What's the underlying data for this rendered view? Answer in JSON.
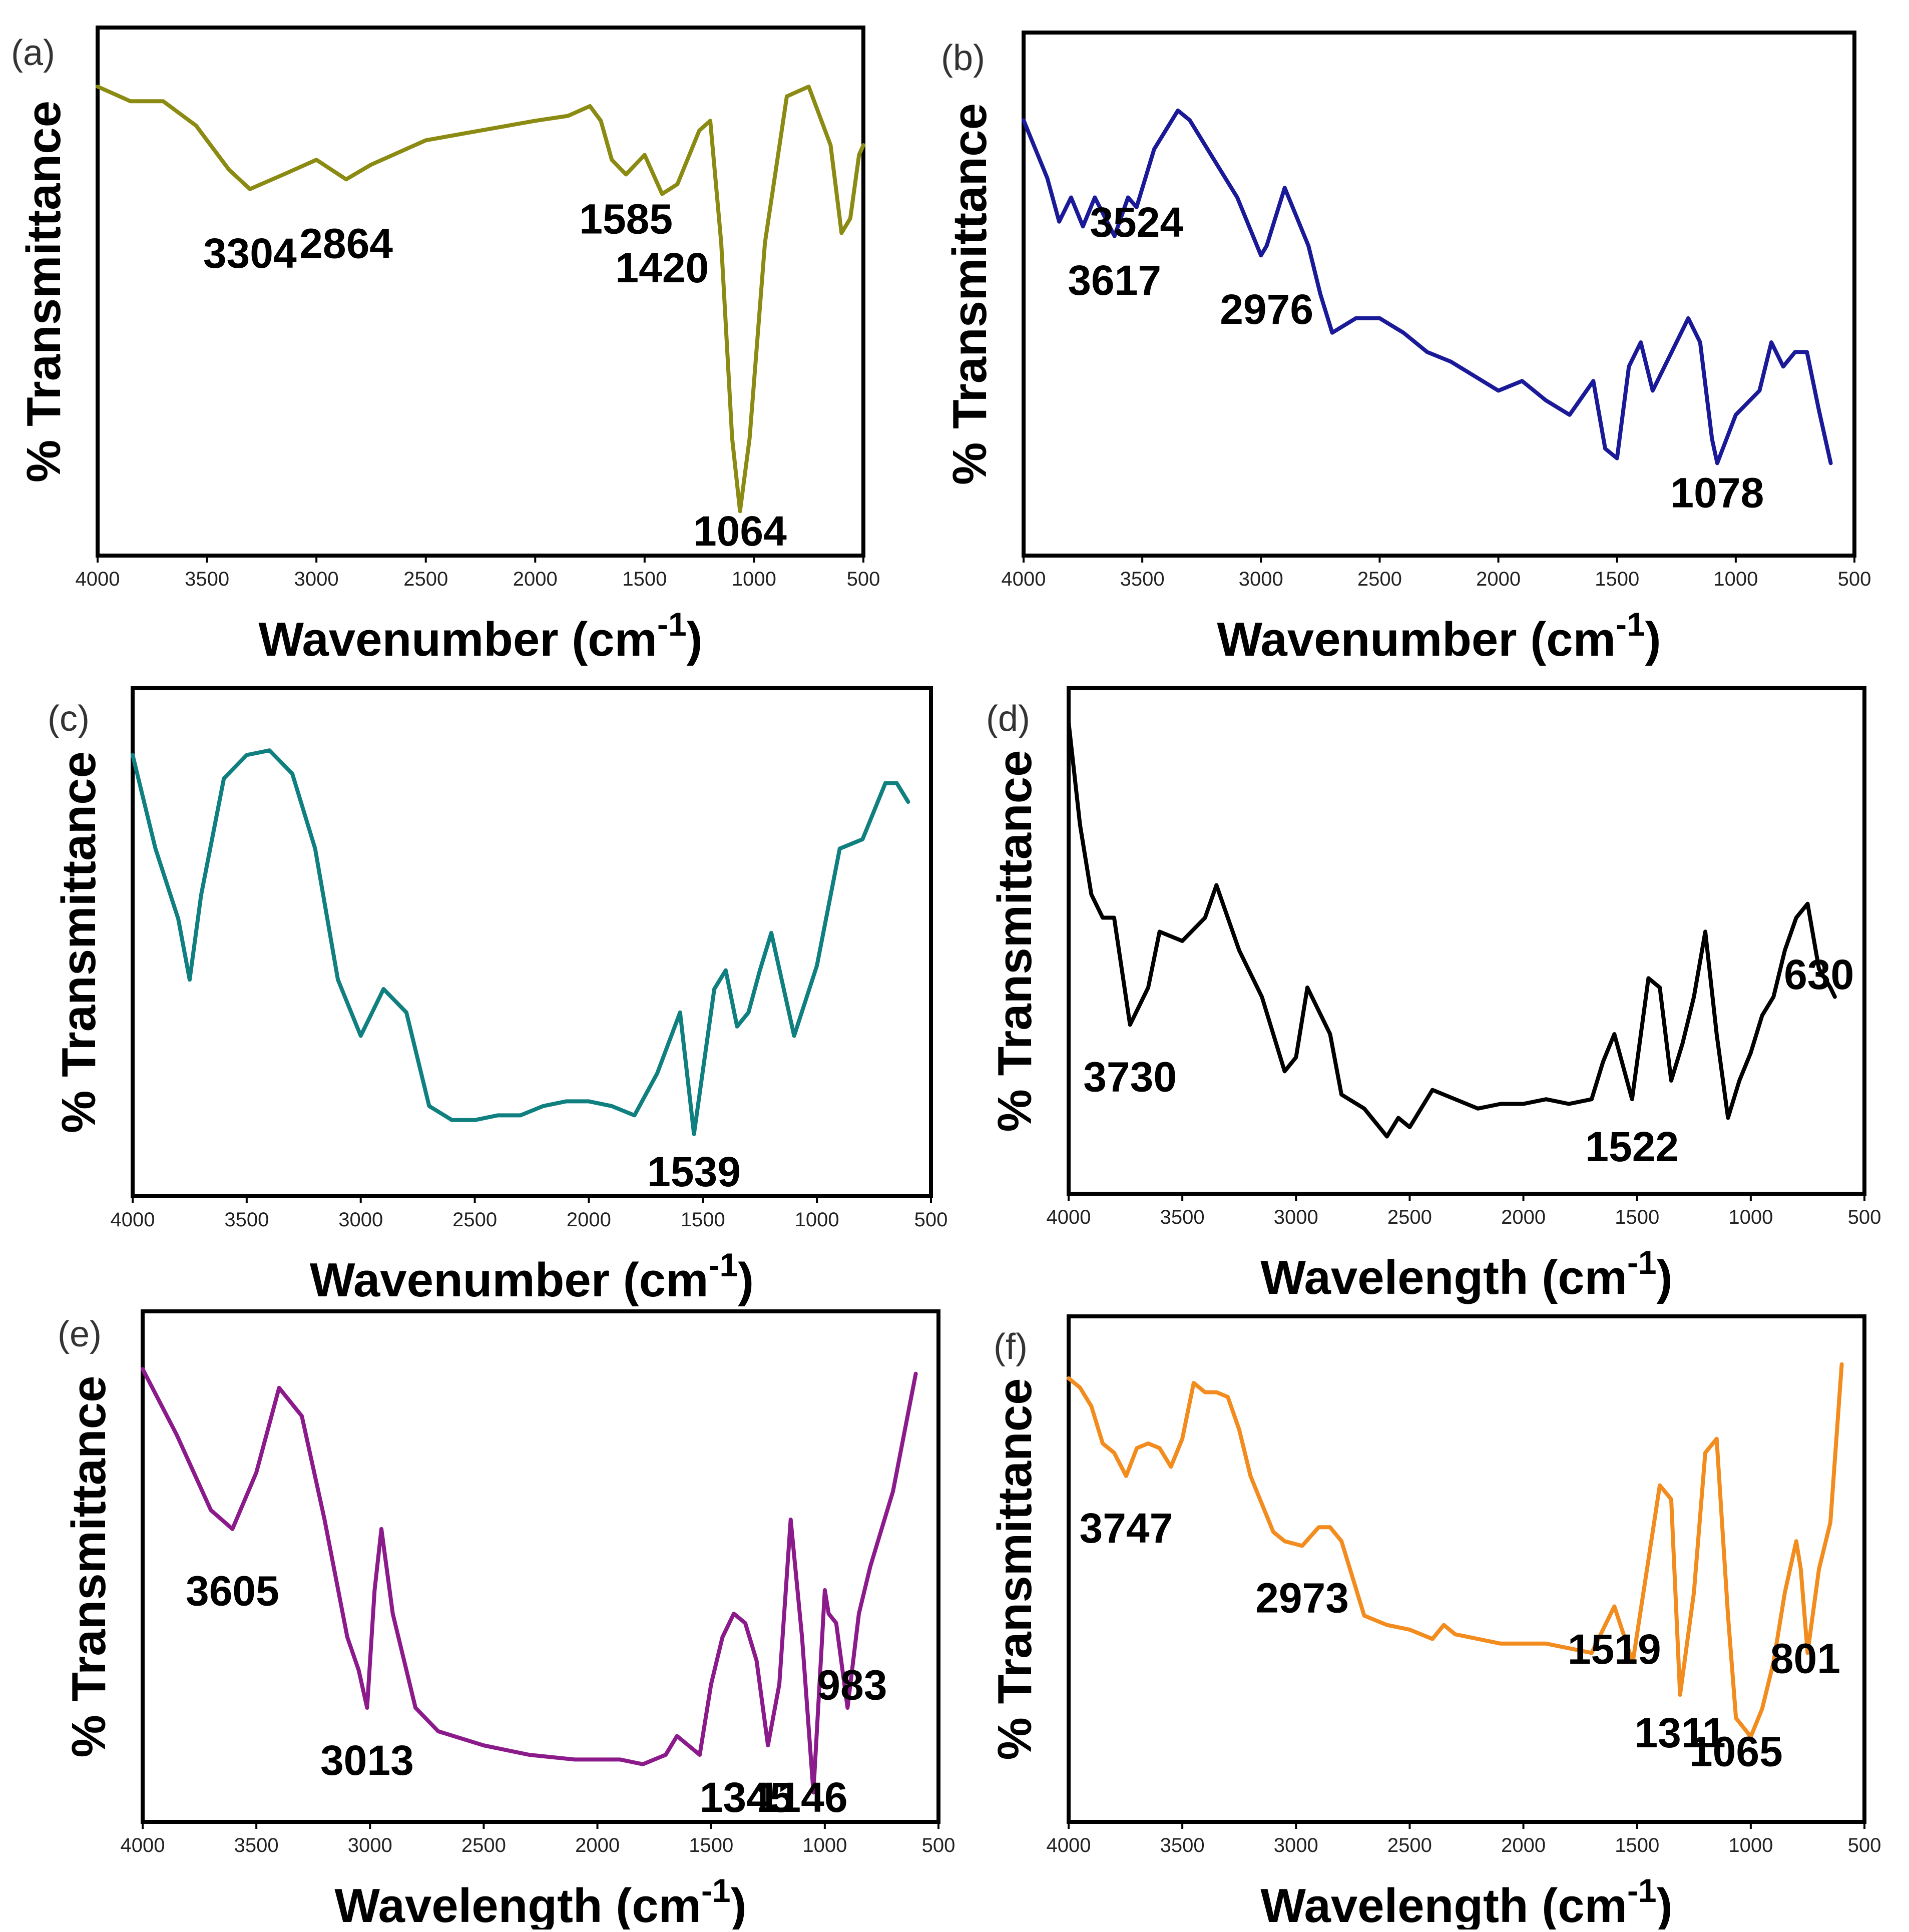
{
  "chart_data": [
    {
      "panel": "(a)",
      "type": "line",
      "ylabel": "% Transmittance",
      "xlabel": "Wavenumber (cm",
      "xlabel_sup": "-1",
      "xlabel_close": ")",
      "xlim": [
        4000,
        500
      ],
      "ylim": [
        0,
        100
      ],
      "xticks": [
        "4000",
        "3500",
        "3000",
        "2500",
        "2000",
        "1500",
        "1000",
        "500"
      ],
      "color": "#8b8b14",
      "x": [
        4000,
        3850,
        3700,
        3550,
        3400,
        3304,
        3150,
        3000,
        2864,
        2750,
        2500,
        2250,
        2000,
        1850,
        1750,
        1700,
        1650,
        1585,
        1500,
        1420,
        1350,
        1250,
        1200,
        1150,
        1100,
        1064,
        1020,
        950,
        850,
        750,
        650,
        600,
        560,
        520,
        500
      ],
      "y": [
        92,
        89,
        89,
        84,
        75,
        71,
        74,
        77,
        73,
        76,
        81,
        83,
        85,
        86,
        88,
        85,
        77,
        74,
        78,
        70,
        72,
        83,
        85,
        60,
        20,
        5,
        20,
        60,
        90,
        92,
        80,
        62,
        65,
        78,
        80
      ],
      "peaks": [
        {
          "label": "3304",
          "x": 3304,
          "dy": -12
        },
        {
          "label": "2864",
          "x": 2864,
          "dy": -12
        },
        {
          "label": "1585",
          "x": 1585,
          "dy": -8
        },
        {
          "label": "1420",
          "x": 1420,
          "dy": -14
        },
        {
          "label": "1064",
          "x": 1064,
          "dy": -5
        }
      ]
    },
    {
      "panel": "(b)",
      "type": "line",
      "ylabel": "% Transmittance",
      "xlabel": "Wavenumber (cm",
      "xlabel_sup": "-1",
      "xlabel_close": ")",
      "xlim": [
        4000,
        500
      ],
      "ylim": [
        0,
        100
      ],
      "xticks": [
        "4000",
        "3500",
        "3000",
        "2500",
        "2000",
        "1500",
        "1000",
        "500"
      ],
      "color": "#1a1a99",
      "x": [
        4000,
        3950,
        3900,
        3850,
        3800,
        3750,
        3700,
        3617,
        3560,
        3524,
        3450,
        3350,
        3300,
        3200,
        3100,
        3000,
        2976,
        2900,
        2800,
        2750,
        2700,
        2600,
        2500,
        2400,
        2300,
        2200,
        2100,
        2000,
        1900,
        1800,
        1700,
        1600,
        1550,
        1500,
        1450,
        1400,
        1350,
        1300,
        1200,
        1150,
        1100,
        1078,
        1000,
        900,
        850,
        800,
        750,
        700,
        650,
        600
      ],
      "y": [
        86,
        80,
        74,
        65,
        70,
        64,
        70,
        62,
        70,
        68,
        80,
        88,
        86,
        78,
        70,
        58,
        60,
        72,
        60,
        50,
        42,
        45,
        45,
        42,
        38,
        36,
        33,
        30,
        32,
        28,
        25,
        32,
        18,
        16,
        35,
        40,
        30,
        35,
        45,
        40,
        20,
        15,
        25,
        30,
        40,
        35,
        38,
        38,
        26,
        15
      ],
      "peaks": [
        {
          "label": "3617",
          "x": 3617,
          "dy": -8
        },
        {
          "label": "3524",
          "x": 3524,
          "dy": -2
        },
        {
          "label": "2976",
          "x": 2976,
          "dy": -12
        },
        {
          "label": "1078",
          "x": 1078,
          "dy": -5
        }
      ]
    },
    {
      "panel": "(c)",
      "type": "line",
      "ylabel": "% Transmittance",
      "xlabel": "Wavenumber (cm",
      "xlabel_sup": "-1",
      "xlabel_close": ")",
      "xlim": [
        4000,
        500
      ],
      "ylim": [
        0,
        100
      ],
      "xticks": [
        "4000",
        "3500",
        "3000",
        "2500",
        "2000",
        "1500",
        "1000",
        "500"
      ],
      "color": "#0f7f7f",
      "x": [
        4000,
        3900,
        3800,
        3750,
        3700,
        3600,
        3500,
        3400,
        3300,
        3200,
        3100,
        3000,
        2900,
        2800,
        2700,
        2600,
        2500,
        2400,
        2300,
        2200,
        2100,
        2000,
        1900,
        1800,
        1700,
        1600,
        1539,
        1450,
        1400,
        1350,
        1300,
        1250,
        1200,
        1100,
        1000,
        900,
        800,
        700,
        650,
        600
      ],
      "y": [
        90,
        70,
        55,
        42,
        60,
        85,
        90,
        91,
        86,
        70,
        42,
        30,
        40,
        35,
        15,
        12,
        12,
        13,
        13,
        15,
        16,
        16,
        15,
        13,
        22,
        35,
        9,
        40,
        44,
        32,
        35,
        44,
        52,
        30,
        45,
        70,
        72,
        84,
        84,
        80
      ],
      "peaks": [
        {
          "label": "1539",
          "x": 1539,
          "dy": -8
        }
      ]
    },
    {
      "panel": "(d)",
      "type": "line",
      "ylabel": "% Transmittance",
      "xlabel": "Wavelength",
      "xlabel_sup": "-1",
      "xlabel_space": "(cm",
      "xlabel_close": ")",
      "xlim": [
        4000,
        500
      ],
      "ylim": [
        0,
        100
      ],
      "xticks": [
        "4000",
        "3500",
        "3000",
        "2500",
        "2000",
        "1500",
        "1000",
        "500"
      ],
      "color": "#000000",
      "x": [
        4000,
        3950,
        3900,
        3850,
        3800,
        3730,
        3650,
        3600,
        3500,
        3400,
        3350,
        3300,
        3250,
        3150,
        3050,
        3000,
        2950,
        2900,
        2850,
        2800,
        2700,
        2600,
        2550,
        2500,
        2400,
        2300,
        2200,
        2100,
        2000,
        1900,
        1800,
        1700,
        1650,
        1600,
        1522,
        1450,
        1400,
        1350,
        1300,
        1250,
        1200,
        1150,
        1100,
        1050,
        1000,
        950,
        900,
        850,
        800,
        750,
        700,
        650,
        630
      ],
      "y": [
        97,
        75,
        60,
        55,
        55,
        32,
        40,
        52,
        50,
        55,
        62,
        55,
        48,
        38,
        22,
        25,
        40,
        35,
        30,
        17,
        14,
        8,
        12,
        10,
        18,
        16,
        14,
        15,
        15,
        16,
        15,
        16,
        24,
        30,
        16,
        42,
        40,
        20,
        28,
        38,
        52,
        30,
        12,
        20,
        26,
        34,
        38,
        48,
        55,
        58,
        44,
        40,
        38
      ],
      "peaks": [
        {
          "label": "3730",
          "x": 3730,
          "dy": -10
        },
        {
          "label": "1522",
          "x": 1522,
          "dy": -9
        },
        {
          "label": "630",
          "x": 700,
          "dy": 0
        }
      ]
    },
    {
      "panel": "(e)",
      "type": "line",
      "ylabel": "% Transmittance",
      "xlabel": "Wavelength (cm",
      "xlabel_sup": "-1",
      "xlabel_close": ")",
      "xlim": [
        4000,
        500
      ],
      "ylim": [
        0,
        100
      ],
      "xticks": [
        "4000",
        "3500",
        "3000",
        "2500",
        "2000",
        "1500",
        "1000",
        "500"
      ],
      "color": "#8b1a8b",
      "x": [
        4000,
        3850,
        3700,
        3605,
        3500,
        3400,
        3300,
        3200,
        3100,
        3050,
        3013,
        2980,
        2950,
        2900,
        2850,
        2800,
        2700,
        2500,
        2300,
        2100,
        1900,
        1800,
        1700,
        1650,
        1600,
        1550,
        1500,
        1450,
        1400,
        1350,
        1300,
        1250,
        1200,
        1150,
        1146,
        1100,
        1050,
        1000,
        983,
        950,
        900,
        850,
        800,
        700,
        600
      ],
      "y": [
        92,
        78,
        62,
        58,
        70,
        88,
        82,
        60,
        35,
        28,
        20,
        45,
        58,
        40,
        30,
        20,
        15,
        12,
        10,
        9,
        9,
        8,
        10,
        14,
        12,
        10,
        25,
        35,
        40,
        38,
        30,
        12,
        25,
        60,
        58,
        35,
        2,
        45,
        40,
        38,
        20,
        40,
        50,
        66,
        91
      ],
      "peaks": [
        {
          "label": "3605",
          "x": 3605,
          "dy": -12
        },
        {
          "label": "3013",
          "x": 3013,
          "dy": -10
        },
        {
          "label": "1345",
          "x": 1345,
          "dy": -38
        },
        {
          "label": "1146",
          "x": 1100,
          "dy": -34
        },
        {
          "label": "983",
          "x": 880,
          "dy": -2
        }
      ]
    },
    {
      "panel": "(f)",
      "type": "line",
      "ylabel": "% Transmittance",
      "xlabel": "Wavelength (cm",
      "xlabel_sup": "-1",
      "xlabel_close": ")",
      "xlim": [
        4000,
        500
      ],
      "ylim": [
        0,
        100
      ],
      "xticks": [
        "4000",
        "3500",
        "3000",
        "2500",
        "2000",
        "1500",
        "1000",
        "500"
      ],
      "color": "#f28c1e",
      "x": [
        4000,
        3950,
        3900,
        3850,
        3800,
        3747,
        3700,
        3650,
        3600,
        3550,
        3500,
        3450,
        3400,
        3350,
        3300,
        3250,
        3200,
        3100,
        3050,
        2973,
        2900,
        2850,
        2800,
        2750,
        2700,
        2600,
        2500,
        2400,
        2350,
        2300,
        2200,
        2100,
        2000,
        1900,
        1800,
        1700,
        1600,
        1519,
        1450,
        1400,
        1350,
        1311,
        1250,
        1200,
        1150,
        1100,
        1065,
        1000,
        950,
        900,
        850,
        800,
        780,
        750,
        700,
        650,
        600
      ],
      "y": [
        91,
        89,
        85,
        77,
        75,
        70,
        76,
        77,
        76,
        72,
        78,
        90,
        88,
        88,
        87,
        80,
        70,
        58,
        56,
        55,
        59,
        59,
        56,
        48,
        40,
        38,
        37,
        35,
        38,
        36,
        35,
        34,
        34,
        34,
        33,
        32,
        42,
        30,
        52,
        68,
        65,
        23,
        45,
        75,
        78,
        40,
        18,
        14,
        20,
        30,
        45,
        56,
        50,
        32,
        50,
        60,
        94
      ],
      "peaks": [
        {
          "label": "3747",
          "x": 3747,
          "dy": -10
        },
        {
          "label": "2973",
          "x": 2973,
          "dy": -10
        },
        {
          "label": "1519",
          "x": 1600,
          "dy": -8
        },
        {
          "label": "1311",
          "x": 1311,
          "dy": -7
        },
        {
          "label": "1065",
          "x": 1065,
          "dy": -6
        },
        {
          "label": "801",
          "x": 760,
          "dy": -6
        }
      ]
    }
  ]
}
